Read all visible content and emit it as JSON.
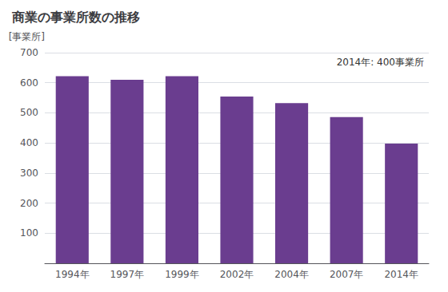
{
  "chart_data": {
    "type": "bar",
    "title": "商業の事業所数の推移",
    "ylabel": "[事業所]",
    "annotation": "2014年: 400事業所",
    "categories": [
      "1994年",
      "1997年",
      "1999年",
      "2002年",
      "2004年",
      "2007年",
      "2014年"
    ],
    "values": [
      622,
      610,
      622,
      554,
      532,
      486,
      398
    ],
    "color": "#6a3d8f",
    "ylim": [
      0,
      700
    ],
    "yticks": [
      {
        "value": 0,
        "label": ""
      },
      100,
      200,
      300,
      400,
      500,
      600,
      700
    ],
    "grid": true
  }
}
